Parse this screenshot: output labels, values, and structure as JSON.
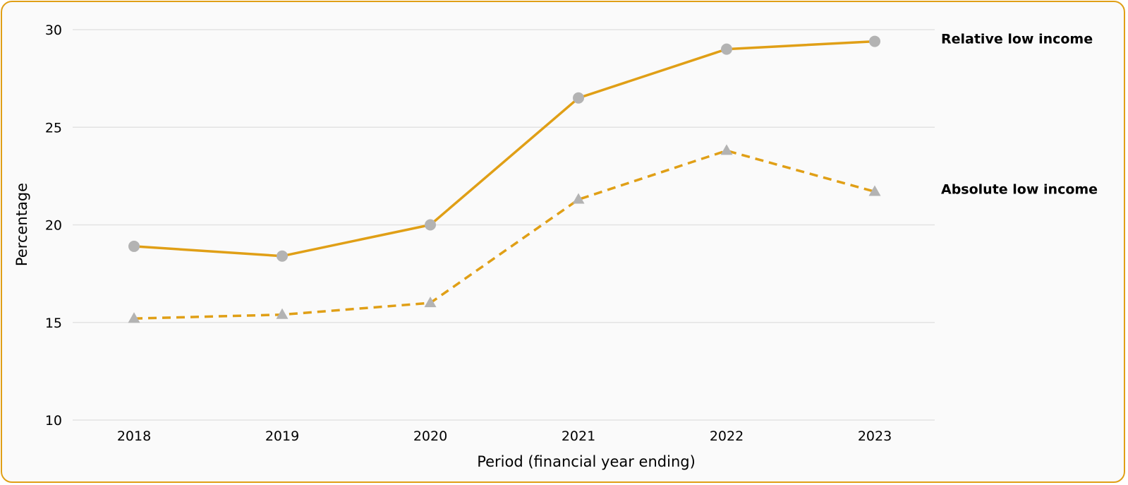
{
  "colors": {
    "line": "#e09f16",
    "marker": "#b3b3b3",
    "grid": "#e3e3e3",
    "background": "#fafafa"
  },
  "chart_data": {
    "type": "line",
    "title": "",
    "xlabel": "Period (financial year ending)",
    "ylabel": "Percentage",
    "categories": [
      "2018",
      "2019",
      "2020",
      "2021",
      "2022",
      "2023"
    ],
    "ylim": [
      10,
      30
    ],
    "yticks": [
      10,
      15,
      20,
      25,
      30
    ],
    "grid": true,
    "legend": "direct labels at right",
    "series": [
      {
        "name": "Relative low income",
        "values": [
          18.9,
          18.4,
          20.0,
          26.5,
          29.0,
          29.4
        ],
        "line_style": "solid",
        "marker": "circle"
      },
      {
        "name": "Absolute low income",
        "values": [
          15.2,
          15.4,
          16.0,
          21.3,
          23.8,
          21.7
        ],
        "line_style": "dashed",
        "marker": "triangle"
      }
    ]
  }
}
